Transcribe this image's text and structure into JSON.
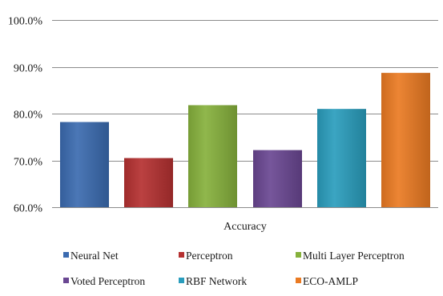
{
  "chart_data": {
    "type": "bar",
    "categories": [
      "Accuracy"
    ],
    "series": [
      {
        "name": "Neural Net",
        "values": [
          78.2
        ],
        "color": "#3b6bb0"
      },
      {
        "name": "Perceptron",
        "values": [
          70.5
        ],
        "color": "#b53131"
      },
      {
        "name": "Multi Layer Perceptron",
        "values": [
          81.8
        ],
        "color": "#86b13c"
      },
      {
        "name": "Voted Perceptron",
        "values": [
          72.2
        ],
        "color": "#6a4792"
      },
      {
        "name": "RBF Network",
        "values": [
          81.0
        ],
        "color": "#2a9dbd"
      },
      {
        "name": "ECO-AMLP",
        "values": [
          88.7
        ],
        "color": "#ea7a22"
      }
    ],
    "ylim": [
      60,
      100
    ],
    "yticks": [
      60,
      70,
      80,
      90,
      100
    ],
    "ytick_labels": [
      "60.0%",
      "70.0%",
      "80.0%",
      "90.0%",
      "100.0%"
    ],
    "grid": true,
    "legend": "bottom",
    "title": "",
    "xlabel": "",
    "ylabel": ""
  }
}
